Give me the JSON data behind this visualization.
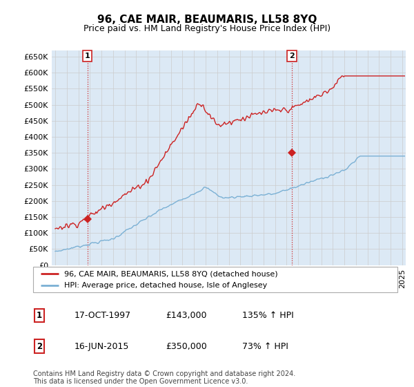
{
  "title": "96, CAE MAIR, BEAUMARIS, LL58 8YQ",
  "subtitle": "Price paid vs. HM Land Registry's House Price Index (HPI)",
  "ylim": [
    0,
    670000
  ],
  "yticks": [
    0,
    50000,
    100000,
    150000,
    200000,
    250000,
    300000,
    350000,
    400000,
    450000,
    500000,
    550000,
    600000,
    650000
  ],
  "xlim_start": 1994.7,
  "xlim_end": 2025.3,
  "grid_color": "#cccccc",
  "plot_bg_color": "#dce9f5",
  "sale1": {
    "date_num": 1997.79,
    "price": 143000,
    "label": "1"
  },
  "sale2": {
    "date_num": 2015.46,
    "price": 350000,
    "label": "2"
  },
  "hpi_color": "#7ab0d4",
  "price_color": "#cc2222",
  "legend_label_price": "96, CAE MAIR, BEAUMARIS, LL58 8YQ (detached house)",
  "legend_label_hpi": "HPI: Average price, detached house, Isle of Anglesey",
  "table_rows": [
    {
      "num": "1",
      "date": "17-OCT-1997",
      "price": "£143,000",
      "hpi": "135% ↑ HPI"
    },
    {
      "num": "2",
      "date": "16-JUN-2015",
      "price": "£350,000",
      "hpi": "73% ↑ HPI"
    }
  ],
  "footer": "Contains HM Land Registry data © Crown copyright and database right 2024.\nThis data is licensed under the Open Government Licence v3.0.",
  "vline_color": "#cc2222",
  "vline_style": ":"
}
